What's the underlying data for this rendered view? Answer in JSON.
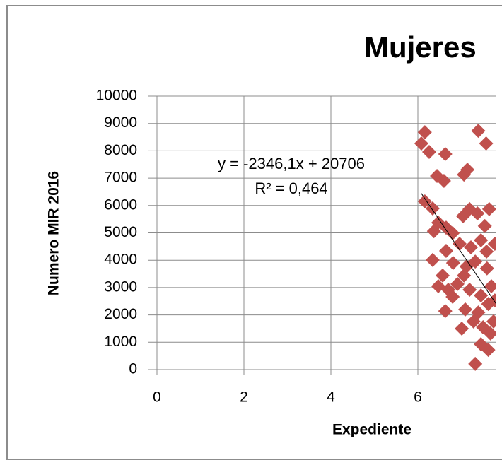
{
  "chart_data": {
    "type": "scatter",
    "title": "Mujeres",
    "x_label": "Expediente",
    "y_label": "Numero MIR 2016",
    "xlim": [
      0,
      8
    ],
    "ylim": [
      0,
      10000
    ],
    "xticks": [
      0,
      2,
      4,
      6
    ],
    "yticks": [
      0,
      1000,
      2000,
      3000,
      4000,
      5000,
      6000,
      7000,
      8000,
      9000,
      10000
    ],
    "grid": true,
    "color": "#c0504d",
    "trendline": {
      "equation": "y = -2346,1x + 20706",
      "slope": -2346.1,
      "intercept": 20706,
      "r2_label": "R² = 0,464",
      "r2": 0.464
    },
    "x": [
      6.16,
      6.08,
      6.26,
      6.63,
      6.44,
      6.6,
      7.06,
      7.14,
      7.39,
      7.57,
      6.16,
      6.34,
      6.47,
      6.65,
      6.37,
      6.8,
      7.04,
      7.19,
      7.37,
      7.64,
      7.54,
      7.45,
      6.96,
      6.65,
      6.81,
      6.34,
      7.12,
      7.32,
      7.59,
      7.06,
      6.47,
      6.7,
      6.91,
      7.19,
      7.45,
      7.69,
      6.63,
      7.09,
      7.39,
      7.62,
      7.01,
      7.28,
      7.5,
      7.67,
      7.62,
      7.45,
      7.32,
      7.74,
      7.58,
      7.22,
      6.57,
      6.8,
      7.77,
      7.77
    ],
    "values": [
      8680,
      8270,
      7960,
      7880,
      7080,
      6900,
      7130,
      7310,
      8730,
      8270,
      6150,
      5890,
      5370,
      5190,
      5060,
      4990,
      5610,
      5870,
      5710,
      5870,
      5250,
      4730,
      4600,
      4340,
      3900,
      4010,
      3770,
      3950,
      3700,
      3440,
      3050,
      2920,
      3130,
      2920,
      2710,
      3050,
      2140,
      2200,
      2090,
      2400,
      1500,
      1760,
      1550,
      1320,
      720,
      930,
      210,
      1760,
      4320,
      4470,
      3440,
      2660,
      4600,
      2530
    ]
  }
}
